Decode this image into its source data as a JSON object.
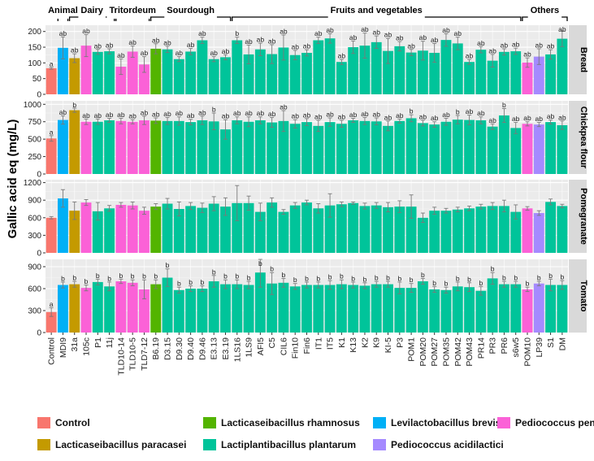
{
  "chart_data": {
    "type": "bar",
    "ylabel": "Gallic acid eq (mg/L)",
    "categories": [
      "Control",
      "MDI9",
      "31a",
      "105c",
      "P1",
      "11j",
      "TLD10-14",
      "TLD10-5",
      "TLD7-12",
      "B6.19",
      "D3.15",
      "D9.30",
      "D9.40",
      "D9.46",
      "E3.13",
      "E3.19",
      "1LS16",
      "1LS9",
      "AFI5",
      "C5",
      "CIL6",
      "Fin10",
      "Fin6",
      "IT1",
      "IT5",
      "K1",
      "K13",
      "K2",
      "K9",
      "KI-5",
      "P3",
      "POM1",
      "POM20",
      "POM27",
      "POM35",
      "POM42",
      "POM43",
      "PR14",
      "PR3",
      "PR6",
      "s6w5",
      "POM10",
      "LP39",
      "S1",
      "DM"
    ],
    "species": [
      "ctrl",
      "lb",
      "lp",
      "pp",
      "lpl",
      "lpl",
      "pp",
      "pp",
      "pp",
      "lr",
      "lpl",
      "lpl",
      "lpl",
      "lpl",
      "lpl",
      "lpl",
      "lpl",
      "lpl",
      "lpl",
      "lpl",
      "lpl",
      "lpl",
      "lpl",
      "lpl",
      "lpl",
      "lpl",
      "lpl",
      "lpl",
      "lpl",
      "lpl",
      "lpl",
      "lpl",
      "lpl",
      "lpl",
      "lpl",
      "lpl",
      "lpl",
      "lpl",
      "lpl",
      "lpl",
      "lpl",
      "pp",
      "pa",
      "lpl",
      "lpl"
    ],
    "colors": {
      "ctrl": "#f8766d",
      "lb": "#00b0f6",
      "lp": "#c49a00",
      "pp": "#fb61d7",
      "lpl": "#00c49a",
      "lr": "#53b400",
      "pa": "#a58aff"
    },
    "groups": [
      {
        "label": "Animal",
        "start": 1,
        "end": 1
      },
      {
        "label": "Dairy",
        "start": 2,
        "end": 5
      },
      {
        "label": "Tritordeum",
        "start": 6,
        "end": 8
      },
      {
        "label": "Sourdough",
        "start": 9,
        "end": 15
      },
      {
        "label": "Fruits and vegetables",
        "start": 16,
        "end": 40
      },
      {
        "label": "Others",
        "start": 41,
        "end": 44
      }
    ],
    "panels": [
      {
        "name": "Bread",
        "ylim": [
          0,
          220
        ],
        "ticks": [
          0,
          50,
          100,
          150,
          200
        ],
        "tick_labels": [
          "0",
          "50",
          "100",
          "150",
          "200"
        ],
        "values": [
          83,
          148,
          115,
          155,
          135,
          137,
          88,
          136,
          95,
          145,
          143,
          112,
          136,
          172,
          112,
          118,
          172,
          127,
          143,
          128,
          149,
          125,
          132,
          172,
          178,
          103,
          150,
          155,
          166,
          138,
          153,
          133,
          139,
          132,
          173,
          162,
          103,
          142,
          107,
          135,
          137,
          101,
          120,
          127,
          177
        ],
        "errors": [
          3,
          35,
          14,
          35,
          8,
          8,
          25,
          18,
          25,
          16,
          10,
          8,
          10,
          10,
          8,
          8,
          10,
          30,
          20,
          30,
          40,
          15,
          10,
          10,
          15,
          8,
          20,
          40,
          20,
          40,
          15,
          10,
          30,
          30,
          20,
          20,
          8,
          10,
          20,
          10,
          10,
          15,
          25,
          15,
          25
        ],
        "labels": [
          "a",
          "ab",
          "ab",
          "ab",
          "ab",
          "ab",
          "ab",
          "ab",
          "ab",
          "ab",
          "ab",
          "ab",
          "ab",
          "ab",
          "ab",
          "ab",
          "b",
          "ab",
          "ab",
          "ab",
          "ab",
          "ab",
          "ab",
          "ab",
          "ab",
          "ab",
          "ab",
          "ab",
          "ab",
          "ab",
          "ab",
          "ab",
          "ab",
          "ab",
          "ab",
          "ab",
          "ab",
          "ab",
          "ab",
          "ab",
          "ab",
          "ab",
          "ab",
          "ab",
          "ab"
        ]
      },
      {
        "name": "Chickpea flour",
        "ylim": [
          0,
          1050
        ],
        "ticks": [
          0,
          250,
          500,
          750,
          1000
        ],
        "tick_labels": [
          "0",
          "250",
          "500",
          "750",
          "1000"
        ],
        "values": [
          510,
          775,
          915,
          750,
          750,
          770,
          760,
          750,
          770,
          765,
          760,
          760,
          745,
          770,
          755,
          640,
          770,
          750,
          770,
          740,
          760,
          720,
          745,
          690,
          745,
          720,
          770,
          760,
          755,
          690,
          760,
          800,
          730,
          710,
          750,
          780,
          775,
          770,
          680,
          840,
          660,
          720,
          710,
          745,
          700
        ],
        "errors": [
          40,
          60,
          30,
          40,
          40,
          30,
          40,
          30,
          60,
          40,
          50,
          60,
          40,
          60,
          120,
          140,
          50,
          70,
          50,
          70,
          150,
          60,
          50,
          80,
          60,
          50,
          30,
          50,
          50,
          70,
          30,
          50,
          40,
          40,
          50,
          60,
          70,
          50,
          40,
          100,
          80,
          30,
          30,
          30,
          60
        ],
        "labels": [
          "a",
          "ab",
          "b",
          "ab",
          "ab",
          "ab",
          "ab",
          "ab",
          "ab",
          "ab",
          "ab",
          "ab",
          "ab",
          "ab",
          "b",
          "ab",
          "ab",
          "ab",
          "ab",
          "ab",
          "ab",
          "ab",
          "ab",
          "ab",
          "ab",
          "ab",
          "ab",
          "ab",
          "ab",
          "ab",
          "ab",
          "b",
          "ab",
          "ab",
          "ab",
          "b",
          "ab",
          "ab",
          "ab",
          "b",
          "ab",
          "ab",
          "ab",
          "ab",
          "ab"
        ]
      },
      {
        "name": "Pomegranate",
        "ylim": [
          0,
          1250
        ],
        "ticks": [
          0,
          300,
          600,
          900,
          1200
        ],
        "tick_labels": [
          "0",
          "300",
          "600",
          "900",
          "1200"
        ],
        "values": [
          600,
          930,
          720,
          860,
          710,
          760,
          820,
          810,
          720,
          790,
          840,
          750,
          800,
          770,
          840,
          790,
          850,
          850,
          700,
          860,
          700,
          810,
          860,
          760,
          810,
          830,
          850,
          800,
          810,
          780,
          790,
          790,
          600,
          720,
          720,
          740,
          760,
          790,
          800,
          800,
          700,
          760,
          680,
          870,
          800
        ],
        "errors": [
          20,
          150,
          150,
          50,
          150,
          50,
          40,
          60,
          60,
          50,
          90,
          120,
          60,
          80,
          120,
          150,
          300,
          120,
          150,
          80,
          40,
          50,
          40,
          80,
          200,
          40,
          20,
          50,
          50,
          80,
          100,
          200,
          80,
          60,
          40,
          40,
          40,
          40,
          60,
          100,
          120,
          30,
          40,
          50,
          30
        ],
        "labels": [
          "",
          "",
          "",
          "",
          "",
          "",
          "",
          "",
          "",
          "",
          "",
          "",
          "",
          "",
          "",
          "",
          "",
          "",
          "",
          "",
          "",
          "",
          "",
          "",
          "",
          "",
          "",
          "",
          "",
          "",
          "",
          "",
          "",
          "",
          "",
          "",
          "",
          "",
          "",
          "",
          "",
          "",
          "",
          "",
          ""
        ]
      },
      {
        "name": "Tomato",
        "ylim": [
          0,
          1000
        ],
        "ticks": [
          0,
          300,
          600,
          900
        ],
        "tick_labels": [
          "0",
          "300",
          "600",
          "900"
        ],
        "values": [
          280,
          650,
          660,
          610,
          690,
          630,
          700,
          680,
          590,
          660,
          750,
          580,
          600,
          600,
          700,
          660,
          660,
          650,
          820,
          670,
          680,
          630,
          650,
          650,
          650,
          660,
          650,
          640,
          660,
          660,
          610,
          610,
          700,
          590,
          580,
          630,
          620,
          570,
          740,
          660,
          660,
          590,
          670,
          650,
          650
        ],
        "errors": [
          60,
          40,
          40,
          40,
          40,
          60,
          30,
          40,
          130,
          60,
          120,
          40,
          40,
          40,
          80,
          60,
          60,
          50,
          200,
          150,
          60,
          40,
          40,
          40,
          60,
          60,
          40,
          40,
          40,
          40,
          80,
          60,
          40,
          40,
          40,
          60,
          60,
          60,
          80,
          40,
          40,
          30,
          30,
          80,
          60
        ],
        "labels": [
          "a",
          "b",
          "b",
          "b",
          "b",
          "b",
          "b",
          "b",
          "b",
          "b",
          "b",
          "b",
          "b",
          "b",
          "b",
          "b",
          "b",
          "b",
          "b",
          "b",
          "b",
          "b",
          "b",
          "b",
          "b",
          "b",
          "b",
          "b",
          "b",
          "b",
          "b",
          "b",
          "b",
          "b",
          "b",
          "b",
          "b",
          "b",
          "b",
          "b",
          "b",
          "b",
          "b",
          "b",
          "b"
        ]
      }
    ],
    "legend": [
      {
        "label": "Control",
        "key": "ctrl"
      },
      {
        "label": "Lacticaseibacillus paracasei",
        "key": "lp"
      },
      {
        "label": "Lacticaseibacillus rhamnosus",
        "key": "lr"
      },
      {
        "label": "Lactiplantibacillus plantarum",
        "key": "lpl"
      },
      {
        "label": "Levilactobacillus brevis",
        "key": "lb"
      },
      {
        "label": "Pediococcus acidilactici",
        "key": "pa"
      },
      {
        "label": "Pediococcus pentosaceus",
        "key": "pp"
      }
    ]
  }
}
